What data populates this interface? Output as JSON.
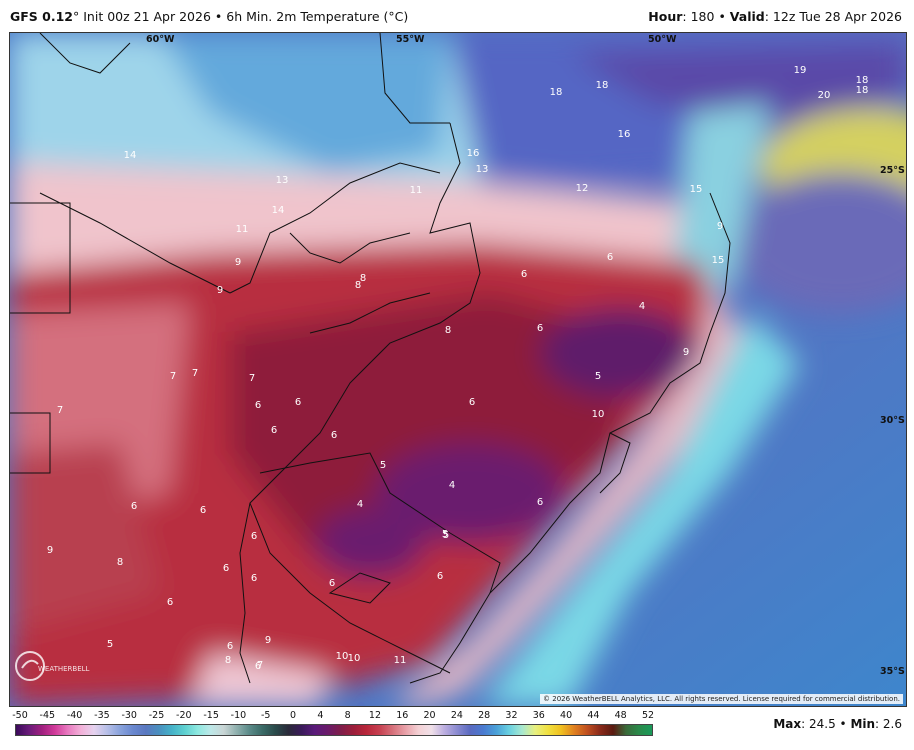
{
  "header": {
    "model": "GFS 0.12",
    "model_unit": "°",
    "init_text": "Init 00z 21 Apr 2026",
    "separator": "•",
    "product": "6h Min. 2m Temperature (°C)",
    "hour_label": "Hour",
    "hour_value": ": 180",
    "valid_label": "Valid",
    "valid_value": ": 12z Tue 28 Apr 2026"
  },
  "map": {
    "longitude_labels": [
      "60°W",
      "55°W",
      "50°W"
    ],
    "latitude_labels": [
      "25°S",
      "30°S",
      "35°S"
    ],
    "copyright": "© 2026 WeatherBELL Analytics, LLC. All rights reserved. License required for commercial distribution.",
    "logo_text": "WEATHERBELL",
    "point_values": [
      "14",
      "18",
      "18",
      "19",
      "20",
      "18",
      "18",
      "16",
      "16",
      "13",
      "13",
      "11",
      "12",
      "15",
      "11",
      "14",
      "9",
      "9",
      "8",
      "8",
      "6",
      "6",
      "4",
      "8",
      "6",
      "9",
      "7",
      "7",
      "7",
      "7",
      "5",
      "6",
      "6",
      "6",
      "6",
      "6",
      "10",
      "5",
      "5",
      "4",
      "4",
      "5",
      "6",
      "6",
      "6",
      "6",
      "6",
      "6",
      "9",
      "8",
      "6",
      "6",
      "6",
      "5",
      "9",
      "8",
      "6",
      "7",
      "10",
      "10",
      "11",
      "6",
      "15",
      "9"
    ]
  },
  "colorbar": {
    "ticks": [
      "-50",
      "-45",
      "-40",
      "-35",
      "-30",
      "-25",
      "-20",
      "-15",
      "-10",
      "-5",
      "0",
      "4",
      "8",
      "12",
      "16",
      "20",
      "24",
      "28",
      "32",
      "36",
      "40",
      "44",
      "48",
      "52"
    ],
    "colors": [
      "#3a0a5a",
      "#6a1b7a",
      "#a0207f",
      "#d13a9a",
      "#e87ac0",
      "#f2b0d8",
      "#e6d2ee",
      "#b8c0e8",
      "#8aa3dc",
      "#6a88cf",
      "#5a78c0",
      "#4a8fbf",
      "#46b2c8",
      "#5ed0d0",
      "#8ee8e0",
      "#bde8e8",
      "#c9d5d5",
      "#8fb0ae",
      "#5a8a88",
      "#3a6a66",
      "#2a4a4a",
      "#2a2a3a",
      "#3a1a5a",
      "#5a1a7a",
      "#6a1a6a",
      "#7e1d4a",
      "#9c1e3a",
      "#b8263a",
      "#c64050",
      "#d6707a",
      "#e8a0a8",
      "#f4d0d4",
      "#f0e0e8",
      "#bcaee0",
      "#8a8ad0",
      "#5a6ac0",
      "#4a7ad0",
      "#4aa0d8",
      "#6ad0e0",
      "#a8e8d0",
      "#e8f080",
      "#f0e040",
      "#f0c020",
      "#e08020",
      "#c05020",
      "#8a2a1a",
      "#5a1a10",
      "#3a6a3a",
      "#2a8a4a",
      "#1a9a5a"
    ]
  },
  "stats": {
    "max_label": "Max",
    "max_value": ": 24.5",
    "min_label": "Min",
    "min_value": ": 2.6"
  }
}
